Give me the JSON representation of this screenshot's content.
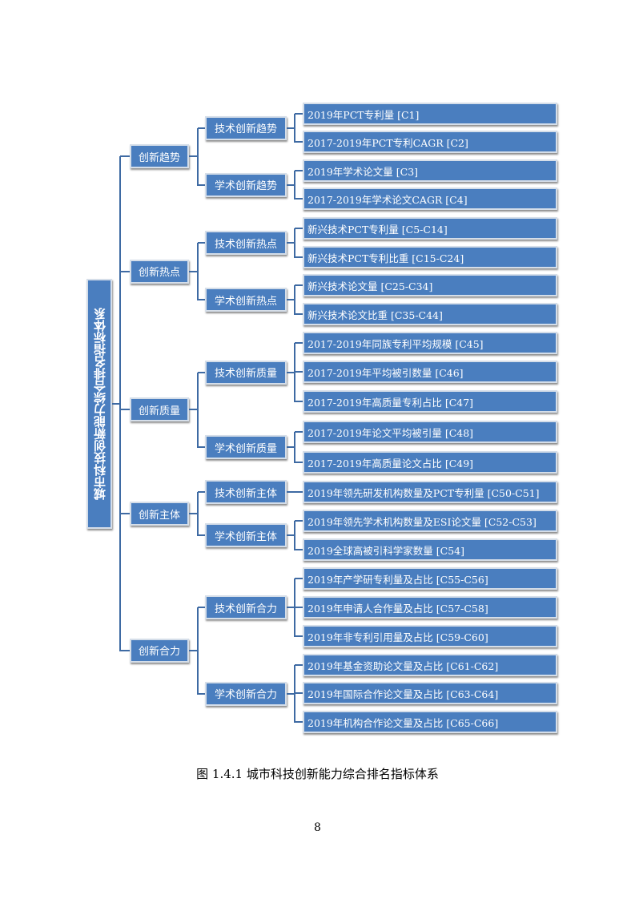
{
  "diagram": {
    "root": "城市科技创新能力综合排名指标体系",
    "groups": [
      {
        "label": "创新趋势",
        "subs": [
          {
            "label": "技术创新趋势",
            "leaves": [
              "2019年PCT专利量 [C1]",
              "2017-2019年PCT专利CAGR [C2]"
            ]
          },
          {
            "label": "学术创新趋势",
            "leaves": [
              "2019年学术论文量 [C3]",
              "2017-2019年学术论文CAGR [C4]"
            ]
          }
        ]
      },
      {
        "label": "创新热点",
        "subs": [
          {
            "label": "技术创新热点",
            "leaves": [
              "新兴技术PCT专利量 [C5-C14]",
              "新兴技术PCT专利比重 [C15-C24]"
            ]
          },
          {
            "label": "学术创新热点",
            "leaves": [
              "新兴技术论文量 [C25-C34]",
              "新兴技术论文比重 [C35-C44]"
            ]
          }
        ]
      },
      {
        "label": "创新质量",
        "subs": [
          {
            "label": "技术创新质量",
            "leaves": [
              "2017-2019年同族专利平均规模  [C45]",
              "2017-2019年平均被引数量 [C46]",
              "2017-2019年高质量专利占比 [C47]"
            ]
          },
          {
            "label": "学术创新质量",
            "leaves": [
              "2017-2019年论文平均被引量 [C48]",
              "2017-2019年高质量论文占比 [C49]"
            ]
          }
        ]
      },
      {
        "label": "创新主体",
        "subs": [
          {
            "label": "技术创新主体",
            "leaves": [
              "2019年领先研发机构数量及PCT专利量 [C50-C51]"
            ]
          },
          {
            "label": "学术创新主体",
            "leaves": [
              "2019年领先学术机构数量及ESI论文量 [C52-C53]",
              "2019全球高被引科学家数量 [C54]"
            ]
          }
        ]
      },
      {
        "label": "创新合力",
        "subs": [
          {
            "label": "技术创新合力",
            "leaves": [
              "2019年产学研专利量及占比 [C55-C56]",
              "2019年申请人合作量及占比 [C57-C58]",
              "2019年非专利引用量及占比 [C59-C60]"
            ]
          },
          {
            "label": "学术创新合力",
            "leaves": [
              "2019年基金资助论文量及占比 [C61-C62]",
              "2019年国际合作论文量及占比 [C63-C64]",
              "2019年机构合作论文量及占比 [C65-C66]"
            ]
          }
        ]
      }
    ]
  },
  "caption": "图 1.4.1  城市科技创新能力综合排名指标体系",
  "page_number": "8",
  "colors": {
    "box_fill": "#4a7ebf",
    "connector": "#3e6aa3",
    "box_border": "#d5dee9"
  }
}
